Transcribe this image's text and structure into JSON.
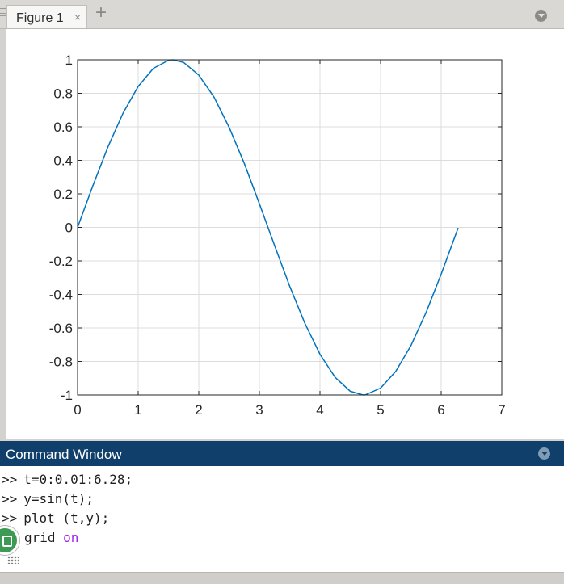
{
  "figure_tab": {
    "label": "Figure 1",
    "close_glyph": "×",
    "add_glyph": "+",
    "icons": {
      "close": "close-icon",
      "add": "plus-icon",
      "menu": "panel-menu-icon"
    }
  },
  "chart_data": {
    "type": "line",
    "title": "",
    "xlabel": "",
    "ylabel": "",
    "xlim": [
      0,
      7
    ],
    "ylim": [
      -1,
      1
    ],
    "xticks": [
      0,
      1,
      2,
      3,
      4,
      5,
      6,
      7
    ],
    "xtick_labels": [
      "0",
      "1",
      "2",
      "3",
      "4",
      "5",
      "6",
      "7"
    ],
    "yticks": [
      1,
      0.8,
      0.6,
      0.4,
      0.2,
      0,
      -0.2,
      -0.4,
      -0.6,
      -0.8,
      -1
    ],
    "ytick_labels": [
      "1",
      "0.8",
      "0.6",
      "0.4",
      "0.2",
      "0",
      "-0.2",
      "-0.4",
      "-0.6",
      "-0.8",
      "-1"
    ],
    "grid": true,
    "series": [
      {
        "color": "#0072bd",
        "x": [
          0,
          0.25,
          0.5,
          0.75,
          1.0,
          1.25,
          1.5,
          1.57,
          1.75,
          2.0,
          2.25,
          2.5,
          2.75,
          3.0,
          3.14,
          3.25,
          3.5,
          3.75,
          4.0,
          4.25,
          4.5,
          4.71,
          4.75,
          5.0,
          5.25,
          5.5,
          5.75,
          6.0,
          6.28
        ],
        "y": [
          0,
          0.247,
          0.479,
          0.682,
          0.841,
          0.949,
          0.997,
          1.0,
          0.984,
          0.909,
          0.778,
          0.598,
          0.382,
          0.141,
          0.002,
          -0.108,
          -0.351,
          -0.572,
          -0.757,
          -0.895,
          -0.978,
          -1.0,
          -0.999,
          -0.959,
          -0.859,
          -0.706,
          -0.508,
          -0.279,
          -0.003
        ]
      }
    ]
  },
  "command_window": {
    "title": "Command Window",
    "prompt": ">>",
    "lines": {
      "l1": "t=0:0.01:6.28;",
      "l2": "y=sin(t);",
      "l3": "plot (t,y);",
      "l4_cmd": "grid",
      "l4_arg": "on"
    },
    "keyword_color": "#a020f0",
    "icons": {
      "menu": "panel-menu-icon",
      "busy": "busy-indicator-icon"
    }
  },
  "colors": {
    "header_bg": "#0f3f6a",
    "line_color": "#0072bd"
  }
}
